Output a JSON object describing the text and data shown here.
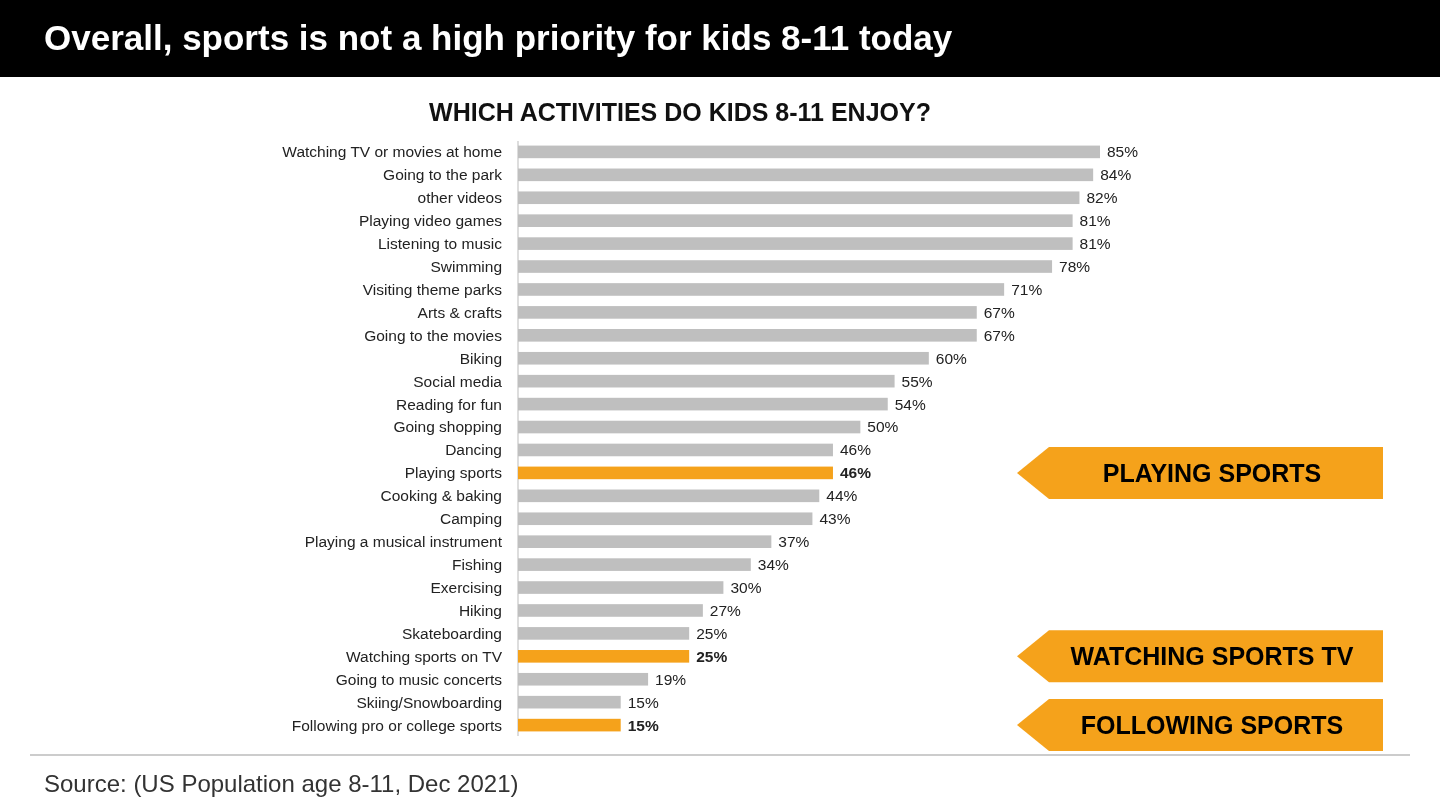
{
  "chart_data": {
    "type": "bar",
    "orientation": "horizontal",
    "title": "Overall, sports is not a high priority for kids 8-11 today",
    "subtitle": "WHICH ACTIVITIES DO KIDS 8-11 ENJOY?",
    "categories": [
      "Watching TV or movies at home",
      "Going to the park",
      "other videos",
      "Playing video games",
      "Listening to music",
      "Swimming",
      "Visiting theme parks",
      "Arts & crafts",
      "Going to the movies",
      "Biking",
      "Social media",
      "Reading for fun",
      "Going shopping",
      "Dancing",
      "Playing sports",
      "Cooking & baking",
      "Camping",
      "Playing a musical instrument",
      "Fishing",
      "Exercising",
      "Hiking",
      "Skateboarding",
      "Watching sports on TV",
      "Going to music concerts",
      "Skiing/Snowboarding",
      "Following pro or college sports"
    ],
    "values": [
      85,
      84,
      82,
      81,
      81,
      78,
      71,
      67,
      67,
      60,
      55,
      54,
      50,
      46,
      46,
      44,
      43,
      37,
      34,
      30,
      27,
      25,
      25,
      19,
      15,
      15
    ],
    "value_labels": [
      "85%",
      "84%",
      "82%",
      "81%",
      "81%",
      "78%",
      "71%",
      "67%",
      "67%",
      "60%",
      "55%",
      "54%",
      "50%",
      "46%",
      "46%",
      "44%",
      "43%",
      "37%",
      "34%",
      "30%",
      "27%",
      "25%",
      "25%",
      "19%",
      "15%",
      "15%"
    ],
    "colors": [
      "#bfbfbf",
      "#bfbfbf",
      "#bfbfbf",
      "#bfbfbf",
      "#bfbfbf",
      "#bfbfbf",
      "#bfbfbf",
      "#bfbfbf",
      "#bfbfbf",
      "#bfbfbf",
      "#bfbfbf",
      "#bfbfbf",
      "#bfbfbf",
      "#bfbfbf",
      "#f5a21b",
      "#bfbfbf",
      "#bfbfbf",
      "#bfbfbf",
      "#bfbfbf",
      "#bfbfbf",
      "#bfbfbf",
      "#bfbfbf",
      "#f5a21b",
      "#bfbfbf",
      "#bfbfbf",
      "#f5a21b"
    ],
    "annotations": [
      "PLAYING SPORTS",
      "WATCHING SPORTS TV",
      "FOLLOWING SPORTS",
      "Source: (US Population age 8-11, Dec 2021)"
    ]
  }
}
